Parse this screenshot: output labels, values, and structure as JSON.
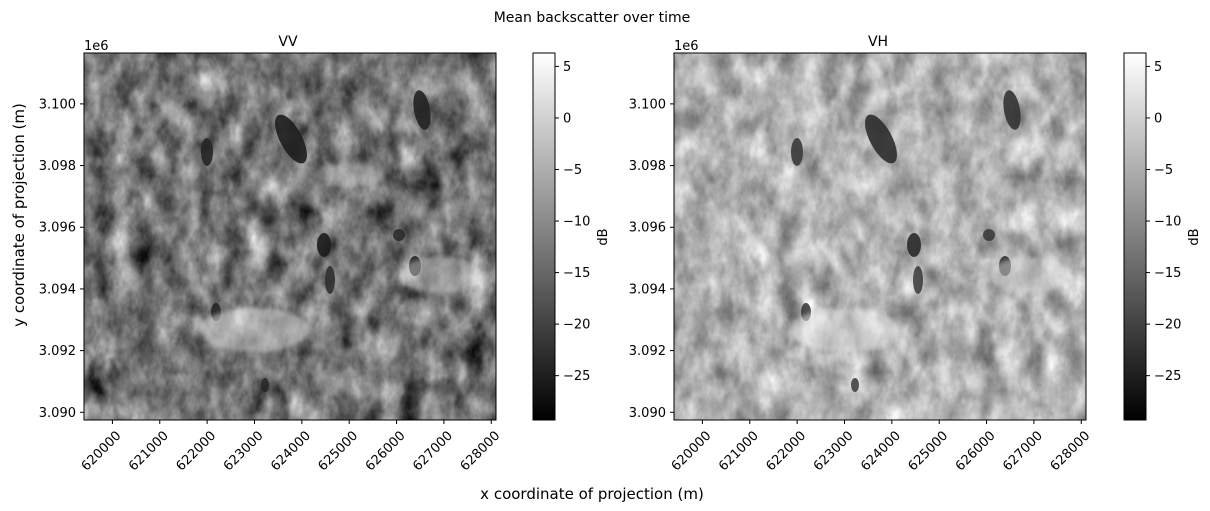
{
  "figure": {
    "suptitle": "Mean backscatter over time",
    "supxlabel": "x coordinate of projection (m)",
    "supylabel": "y coordinate of projection (m)"
  },
  "chart_data": [
    {
      "type": "heatmap",
      "title": "VV",
      "xlabel": "",
      "ylabel": "",
      "colormap": "gray",
      "colorbar_label": "dB",
      "clim": [
        -29.3,
        6.3
      ],
      "colorbar_ticks": [
        5,
        0,
        -5,
        -10,
        -15,
        -20,
        -25
      ],
      "colorbar_tick_labels": [
        "5",
        "0",
        "−5",
        "−10",
        "−15",
        "−20",
        "−25"
      ],
      "xlim": [
        619400,
        628100
      ],
      "ylim": [
        3089750,
        3101650
      ],
      "x_ticks": [
        620000,
        621000,
        622000,
        623000,
        624000,
        625000,
        626000,
        627000,
        628000
      ],
      "x_tick_labels": [
        "620000",
        "621000",
        "622000",
        "623000",
        "624000",
        "625000",
        "626000",
        "627000",
        "628000"
      ],
      "y_ticks": [
        3100000,
        3098000,
        3096000,
        3094000,
        3092000,
        3090000
      ],
      "y_tick_labels": [
        "3.100",
        "3.098",
        "3.096",
        "3.094",
        "3.092",
        "3.090"
      ],
      "y_offset_label": "1e6",
      "grid": false
    },
    {
      "type": "heatmap",
      "title": "VH",
      "xlabel": "",
      "ylabel": "",
      "colormap": "gray",
      "colorbar_label": "dB",
      "clim": [
        -29.3,
        6.3
      ],
      "colorbar_ticks": [
        5,
        0,
        -5,
        -10,
        -15,
        -20,
        -25
      ],
      "colorbar_tick_labels": [
        "5",
        "0",
        "−5",
        "−10",
        "−15",
        "−20",
        "−25"
      ],
      "xlim": [
        619400,
        628100
      ],
      "ylim": [
        3089750,
        3101650
      ],
      "x_ticks": [
        620000,
        621000,
        622000,
        623000,
        624000,
        625000,
        626000,
        627000,
        628000
      ],
      "x_tick_labels": [
        "620000",
        "621000",
        "622000",
        "623000",
        "624000",
        "625000",
        "626000",
        "627000",
        "628000"
      ],
      "y_ticks": [
        3100000,
        3098000,
        3096000,
        3094000,
        3092000,
        3090000
      ],
      "y_tick_labels": [
        "3.100",
        "3.098",
        "3.096",
        "3.094",
        "3.092",
        "3.090"
      ],
      "y_offset_label": "1e6",
      "grid": false
    }
  ]
}
